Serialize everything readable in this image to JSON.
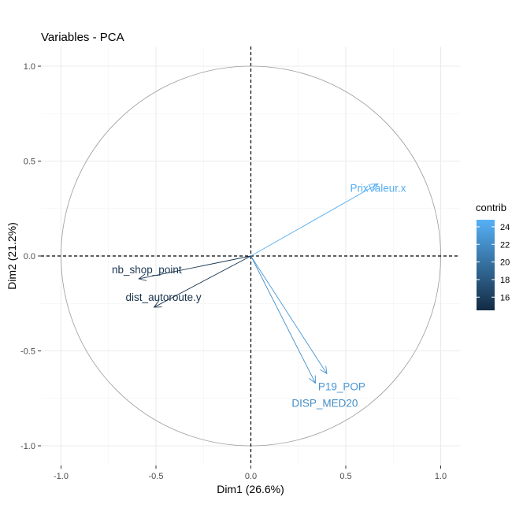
{
  "chart_data": {
    "type": "scatter",
    "title": "Variables - PCA",
    "xlabel": "Dim1 (26.6%)",
    "ylabel": "Dim2 (21.2%)",
    "xlim": [
      -1.1,
      1.1
    ],
    "ylim": [
      -1.1,
      1.1
    ],
    "xticks": [
      -1.0,
      -0.5,
      0.0,
      0.5,
      1.0
    ],
    "xtick_labels": [
      "-1.0",
      "-0.5",
      "0.0",
      "0.5",
      "1.0"
    ],
    "yticks": [
      -1.0,
      -0.5,
      0.0,
      0.5,
      1.0
    ],
    "ytick_labels": [
      "-1.0",
      "-0.5",
      "0.0",
      "0.5",
      "1.0"
    ],
    "grid": true,
    "unit_circle": true,
    "legend": {
      "title": "contrib",
      "placement": "right",
      "range": [
        14.5,
        24.8
      ],
      "ticks": [
        16,
        18,
        20,
        22,
        24
      ],
      "tick_labels": [
        "16",
        "18",
        "20",
        "22",
        "24"
      ],
      "color_low": "#132b43",
      "color_high": "#56b1f7"
    },
    "variables": [
      {
        "name": "PrixValeur.x",
        "x": 0.67,
        "y": 0.38,
        "contrib": 24.5
      },
      {
        "name": "P19_POP",
        "x": 0.4,
        "y": -0.62,
        "contrib": 22.8
      },
      {
        "name": "DISP_MED20",
        "x": 0.34,
        "y": -0.67,
        "contrib": 22.0
      },
      {
        "name": "nb_shop_point",
        "x": -0.59,
        "y": -0.12,
        "contrib": 15.4
      },
      {
        "name": "dist_autoroute.y",
        "x": -0.51,
        "y": -0.27,
        "contrib": 15.0
      }
    ]
  }
}
